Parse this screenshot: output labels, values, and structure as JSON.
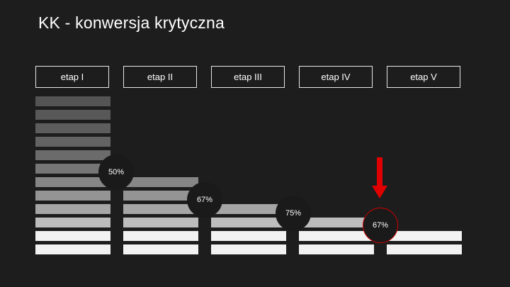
{
  "title": "KK - konwersja krytyczna",
  "stages": [
    {
      "label": "etap I",
      "level_count": 12
    },
    {
      "label": "etap II",
      "level_count": 6
    },
    {
      "label": "etap III",
      "level_count": 4
    },
    {
      "label": "etap IV",
      "level_count": 3
    },
    {
      "label": "etap V",
      "level_count": 2
    }
  ],
  "conversion_rates": [
    {
      "from": "etap I",
      "to": "etap II",
      "label": "50%",
      "critical": false
    },
    {
      "from": "etap II",
      "to": "etap III",
      "label": "67%",
      "critical": false
    },
    {
      "from": "etap III",
      "to": "etap IV",
      "label": "75%",
      "critical": false
    },
    {
      "from": "etap IV",
      "to": "etap V",
      "label": "67%",
      "critical": true
    }
  ],
  "colors": {
    "background": "#1d1d1d",
    "critical": "#e00000",
    "level_shades": [
      "#f2f2f2",
      "#f2f2f2",
      "#bdbdbd",
      "#a6a6a6",
      "#949494",
      "#868686",
      "#767676",
      "#6b6b6b",
      "#636363",
      "#5d5d5d",
      "#585858",
      "#545454"
    ]
  },
  "icons": {
    "critical_marker": "red-down-arrow-icon"
  }
}
